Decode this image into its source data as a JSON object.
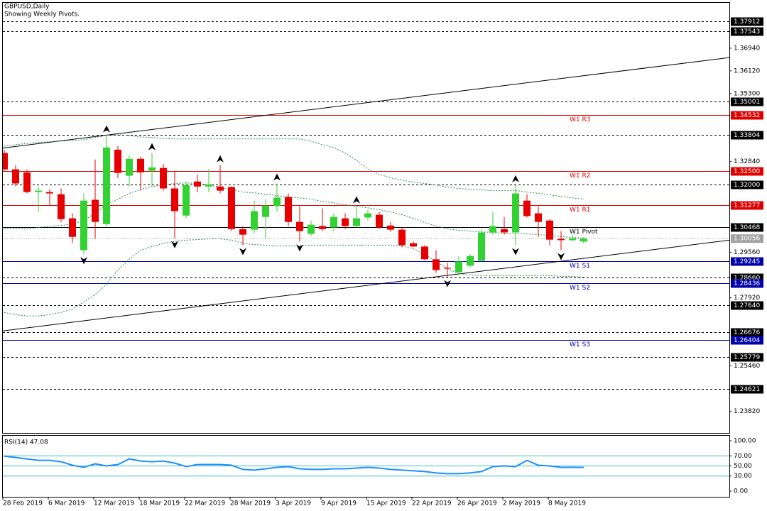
{
  "chart_data": {
    "type": "candlestick",
    "title": "GBPUSD,Daily",
    "subtitle": "Showing Weekly Pivots.",
    "categories": [
      "28 Feb 2019",
      null,
      null,
      null,
      "6 Mar 2019",
      null,
      null,
      null,
      "12 Mar 2019",
      null,
      null,
      null,
      "18 Mar 2019",
      null,
      null,
      null,
      "22 Mar 2019",
      null,
      null,
      null,
      "28 Mar 2019",
      null,
      null,
      null,
      "3 Apr 2019",
      null,
      null,
      null,
      "9 Apr 2019",
      null,
      null,
      null,
      "15 Apr 2019",
      null,
      null,
      null,
      "22 Apr 2019",
      null,
      null,
      null,
      "26 Apr 2019",
      null,
      null,
      null,
      "2 May 2019",
      null,
      null,
      null,
      "8 May 2019",
      null,
      null,
      null
    ],
    "open": [
      1.3315,
      1.3256,
      1.3245,
      1.3174,
      1.3174,
      1.3166,
      1.3079,
      1.2964,
      1.3146,
      1.3058,
      1.3327,
      1.3233,
      1.3294,
      1.3251,
      1.3261,
      1.3187,
      1.3089,
      1.3212,
      1.3194,
      1.3194,
      1.3192,
      1.304,
      1.3038,
      1.3084,
      1.3123,
      1.3156,
      1.3066,
      1.3023,
      1.3051,
      1.3046,
      1.3079,
      1.3051,
      1.3082,
      1.3092,
      1.3053,
      1.3038,
      1.2989,
      1.2977,
      1.2931,
      1.29,
      1.2884,
      1.2908,
      1.2925,
      1.3028,
      1.304,
      1.3028,
      1.3143,
      1.3097,
      1.3071,
      1.3005,
      1.3,
      1.2995
    ],
    "high": [
      1.3327,
      1.3271,
      1.3256,
      1.3194,
      1.3184,
      1.3187,
      1.3097,
      1.3169,
      1.3292,
      1.3379,
      1.334,
      1.3307,
      1.3302,
      1.3315,
      1.3276,
      1.3251,
      1.3212,
      1.3238,
      1.3258,
      1.3271,
      1.3194,
      1.3051,
      1.3143,
      1.3148,
      1.3205,
      1.3169,
      1.3123,
      1.3071,
      1.3115,
      1.3097,
      1.3097,
      1.3123,
      1.311,
      1.3102,
      1.3066,
      1.3046,
      1.2995,
      1.2982,
      1.2964,
      1.2918,
      1.2943,
      1.2949,
      1.304,
      1.3102,
      1.3084,
      1.3199,
      1.3166,
      1.3123,
      1.3076,
      1.3033,
      1.302,
      1.3012
    ],
    "low": [
      1.3251,
      1.3194,
      1.3169,
      1.3102,
      1.3123,
      1.3066,
      1.2989,
      1.2949,
      1.3005,
      1.3051,
      1.3225,
      1.3194,
      1.3179,
      1.3194,
      1.3179,
      1.3007,
      1.3079,
      1.3174,
      1.3174,
      1.3169,
      1.3033,
      1.2982,
      1.3025,
      1.3007,
      1.3102,
      1.3051,
      1.2995,
      1.3015,
      1.3033,
      1.3033,
      1.304,
      1.3046,
      1.3071,
      1.304,
      1.303,
      1.2974,
      1.2974,
      1.2928,
      1.2882,
      1.2866,
      1.2877,
      1.29,
      1.2923,
      1.302,
      1.302,
      1.2982,
      1.3082,
      1.3012,
      1.2982,
      1.2964,
      1.2995,
      1.2987
    ],
    "close": [
      1.3256,
      1.3205,
      1.3174,
      1.3179,
      1.3169,
      1.3076,
      1.3012,
      1.3143,
      1.3066,
      1.3335,
      1.3243,
      1.3294,
      1.3245,
      1.3263,
      1.3187,
      1.3105,
      1.3199,
      1.3194,
      1.3202,
      1.3179,
      1.304,
      1.302,
      1.3105,
      1.3125,
      1.3154,
      1.3066,
      1.3033,
      1.3056,
      1.304,
      1.3084,
      1.3051,
      1.3079,
      1.3097,
      1.3046,
      1.3038,
      1.2982,
      1.2977,
      1.2931,
      1.2892,
      1.2897,
      1.2923,
      1.2943,
      1.3028,
      1.3051,
      1.3028,
      1.3169,
      1.3087,
      1.3066,
      1.3002,
      1.3,
      1.3007,
      1.30056
    ],
    "up_color": "#32d232",
    "down_color": "#e80000",
    "ylim": [
      1.23034,
      1.38578
    ],
    "yticks": [
      {
        "value": 1.3694,
        "label": "1.36940"
      },
      {
        "value": 1.3612,
        "label": "1.36120"
      },
      {
        "value": 1.353,
        "label": "1.35300"
      },
      {
        "value": 1.3284,
        "label": "1.32840"
      },
      {
        "value": 1.2956,
        "label": "1.29560"
      },
      {
        "value": 1.2792,
        "label": "1.27920"
      },
      {
        "value": 1.2546,
        "label": "1.25460"
      },
      {
        "value": 1.2382,
        "label": "1.23820"
      }
    ],
    "grid": false,
    "levels": [
      {
        "value": 1.37912,
        "color": "#000000",
        "style": "dashed"
      },
      {
        "value": 1.37543,
        "color": "#000000",
        "style": "dashed"
      },
      {
        "value": 1.35001,
        "color": "#000000",
        "style": "dashed"
      },
      {
        "name": "W1 R3",
        "value": 1.34532,
        "color": "#e00000",
        "style": "solid"
      },
      {
        "value": 1.33804,
        "color": "#000000",
        "style": "dashed"
      },
      {
        "name": "W1 R2",
        "value": 1.325,
        "label": "1.32500",
        "color": "#e00000",
        "style": "solid"
      },
      {
        "value": 1.32,
        "label": "1.32000",
        "color": "#000000",
        "style": "dashed"
      },
      {
        "name": "W1 R1",
        "value": 1.31277,
        "color": "#e00000",
        "style": "solid"
      },
      {
        "name": "W1 Pivot",
        "value": 1.30468,
        "color": "#000000",
        "style": "solid"
      },
      {
        "name": "W1 S1",
        "value": 1.29245,
        "color": "#0000aa",
        "style": "solid"
      },
      {
        "value": 1.2866,
        "label": "1.28660",
        "color": "#000000",
        "style": "dashed"
      },
      {
        "name": "W1 S2",
        "value": 1.28436,
        "color": "#0000aa",
        "style": "solid"
      },
      {
        "value": 1.2764,
        "label": "1.27640",
        "color": "#000000",
        "style": "dashed"
      },
      {
        "value": 1.26676,
        "color": "#000000",
        "style": "dashed"
      },
      {
        "name": "W1 S3",
        "value": 1.26404,
        "color": "#0000aa",
        "style": "solid"
      },
      {
        "value": 1.25779,
        "color": "#000000",
        "style": "dashed"
      },
      {
        "value": 1.24621,
        "color": "#000000",
        "style": "dashed"
      }
    ],
    "current_price_color": "#a0a0a0",
    "bands": {
      "color": "#2e8b57",
      "upper": [
        1.334,
        1.3345,
        1.335,
        1.3353,
        1.3356,
        1.3358,
        1.3361,
        1.3363,
        1.3371,
        1.3379,
        1.3381,
        1.3379,
        1.3373,
        1.3371,
        1.3368,
        1.3366,
        1.3366,
        1.3366,
        1.3366,
        1.3366,
        1.3366,
        1.3366,
        1.3366,
        1.3366,
        1.3366,
        1.3366,
        1.3366,
        1.3358,
        1.3345,
        1.3335,
        1.3315,
        1.3289,
        1.3256,
        1.3238,
        1.3225,
        1.3217,
        1.321,
        1.3205,
        1.3199,
        1.3192,
        1.3187,
        1.3184,
        1.3182,
        1.3179,
        1.3179,
        1.3179,
        1.3174,
        1.3169,
        1.3164,
        1.3158,
        1.3153,
        1.3148
      ],
      "middle": [
        1.3041,
        1.3041,
        1.3041,
        1.3046,
        1.3051,
        1.3053,
        1.3059,
        1.3071,
        1.3097,
        1.3128,
        1.3148,
        1.3169,
        1.3184,
        1.3194,
        1.3199,
        1.3205,
        1.3207,
        1.3205,
        1.3199,
        1.3192,
        1.3182,
        1.3174,
        1.3171,
        1.3166,
        1.3161,
        1.3156,
        1.3153,
        1.3148,
        1.314,
        1.3135,
        1.3128,
        1.3123,
        1.3117,
        1.311,
        1.3102,
        1.3092,
        1.3079,
        1.3064,
        1.3051,
        1.3041,
        1.3036,
        1.3033,
        1.303,
        1.3028,
        1.3025,
        1.3025,
        1.3023,
        1.302,
        1.3018,
        1.3013,
        1.301,
        1.3007
      ],
      "lower": [
        1.2739,
        1.2731,
        1.2726,
        1.2726,
        1.2731,
        1.2739,
        1.2751,
        1.2777,
        1.2803,
        1.2841,
        1.2892,
        1.2931,
        1.2964,
        1.2977,
        1.2989,
        1.2995,
        1.3,
        1.3002,
        1.3005,
        1.3005,
        1.3,
        1.2989,
        1.2984,
        1.2982,
        1.2979,
        1.2979,
        1.2979,
        1.2982,
        1.2982,
        1.2982,
        1.2982,
        1.2982,
        1.2982,
        1.2982,
        1.2982,
        1.2979,
        1.2969,
        1.2949,
        1.2923,
        1.2897,
        1.2879,
        1.2874,
        1.2872,
        1.2872,
        1.2872,
        1.2872,
        1.2872,
        1.2872,
        1.2872,
        1.2869,
        1.2869,
        1.2866
      ]
    },
    "trendlines": [
      {
        "values": [
          1.3333,
          1.366
        ]
      },
      {
        "values": [
          1.2672,
          1.3
        ]
      }
    ],
    "trendline_color": "#000000",
    "fractals": {
      "up": [
        9,
        13,
        19,
        24,
        31,
        45
      ],
      "down": [
        7,
        15,
        21,
        26,
        39,
        45,
        49
      ]
    },
    "rsi": {
      "title": "RSI(14) 47.08",
      "color": "#1e90ff",
      "level_color": "#40c0c0",
      "values": [
        69.4,
        66.7,
        63.9,
        61.1,
        61.1,
        58.3,
        51.4,
        47.2,
        54.2,
        50.0,
        52.8,
        63.9,
        59.7,
        58.3,
        59.7,
        55.6,
        48.6,
        52.8,
        52.8,
        52.8,
        51.4,
        43.1,
        41.7,
        44.4,
        47.2,
        48.6,
        44.4,
        43.1,
        43.1,
        44.4,
        44.4,
        45.8,
        47.2,
        45.8,
        43.1,
        41.7,
        40.3,
        38.9,
        36.1,
        34.7,
        34.7,
        36.1,
        38.9,
        48.6,
        50.0,
        48.6,
        61.1,
        51.4,
        50.0,
        47.2,
        47.2,
        47.08
      ],
      "ylim": [
        -11.1,
        109.7
      ],
      "yticks": [
        {
          "value": 100,
          "label": "100.00"
        },
        {
          "value": 70,
          "label": "70.00"
        },
        {
          "value": 50,
          "label": "50.00"
        },
        {
          "value": 30,
          "label": "30.00"
        },
        {
          "value": 0,
          "label": "0.00"
        }
      ],
      "levels": [
        70,
        50,
        30
      ]
    }
  }
}
